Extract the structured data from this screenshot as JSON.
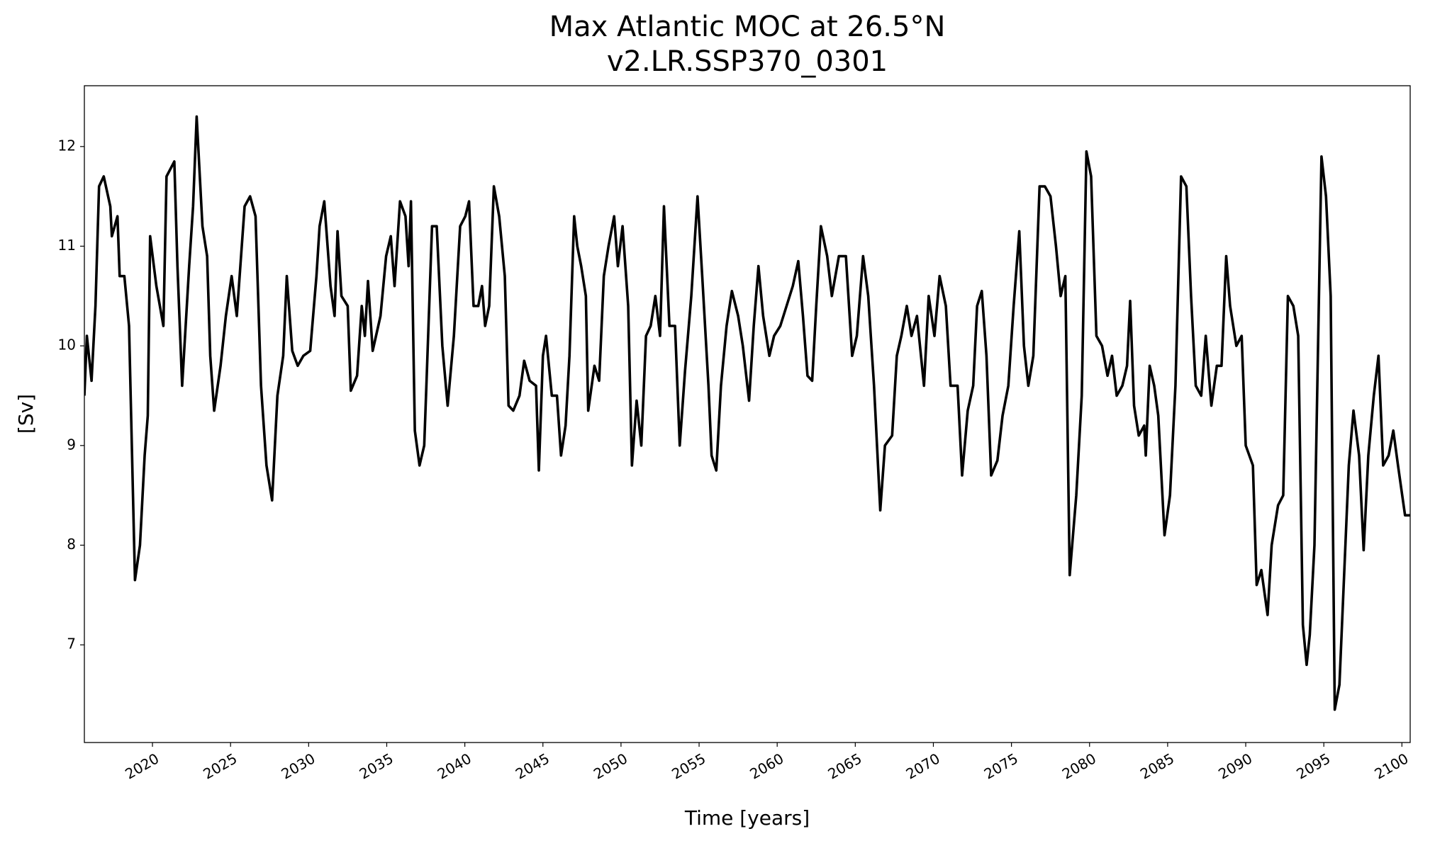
{
  "chart_data": {
    "type": "line",
    "title": "Max Atlantic MOC at 26.5°N",
    "subtitle": "v2.LR.SSP370_0301",
    "x_label": "Time [years]",
    "y_label": "[Sv]",
    "color": "#000000",
    "xlim": [
      2015.64,
      2100.53
    ],
    "ylim": [
      6.02,
      12.61
    ],
    "xticks": [
      2020,
      2025,
      2030,
      2035,
      2040,
      2045,
      2050,
      2055,
      2060,
      2065,
      2070,
      2075,
      2080,
      2085,
      2090,
      2095,
      2100
    ],
    "yticks": [
      7,
      8,
      9,
      10,
      11,
      12
    ],
    "x": [
      2015.64,
      2015.8,
      2016.1,
      2016.35,
      2016.58,
      2016.88,
      2017.3,
      2017.4,
      2017.76,
      2017.9,
      2018.2,
      2018.5,
      2018.88,
      2019.2,
      2019.5,
      2019.7,
      2019.85,
      2020.25,
      2020.7,
      2020.9,
      2021.4,
      2021.6,
      2021.9,
      2022.35,
      2022.6,
      2022.83,
      2023.2,
      2023.5,
      2023.7,
      2023.95,
      2024.36,
      2024.7,
      2025.07,
      2025.4,
      2025.9,
      2026.25,
      2026.6,
      2026.95,
      2027.3,
      2027.66,
      2028.0,
      2028.37,
      2028.6,
      2028.95,
      2029.3,
      2029.66,
      2030.1,
      2030.5,
      2030.7,
      2031.0,
      2031.4,
      2031.66,
      2031.85,
      2032.1,
      2032.5,
      2032.7,
      2033.1,
      2033.4,
      2033.6,
      2033.8,
      2034.1,
      2034.6,
      2034.96,
      2035.26,
      2035.5,
      2035.85,
      2036.2,
      2036.4,
      2036.55,
      2036.8,
      2037.1,
      2037.4,
      2037.55,
      2037.9,
      2038.2,
      2038.56,
      2038.9,
      2039.3,
      2039.7,
      2040.03,
      2040.27,
      2040.56,
      2040.86,
      2041.1,
      2041.3,
      2041.56,
      2041.86,
      2042.2,
      2042.56,
      2042.8,
      2043.1,
      2043.5,
      2043.8,
      2044.15,
      2044.56,
      2044.74,
      2045.0,
      2045.2,
      2045.57,
      2045.9,
      2046.16,
      2046.45,
      2046.7,
      2047.0,
      2047.2,
      2047.45,
      2047.75,
      2047.9,
      2048.3,
      2048.6,
      2048.9,
      2049.2,
      2049.56,
      2049.8,
      2050.1,
      2050.46,
      2050.7,
      2051.0,
      2051.3,
      2051.6,
      2051.9,
      2052.2,
      2052.5,
      2052.75,
      2053.1,
      2053.46,
      2053.76,
      2054.1,
      2054.5,
      2054.9,
      2055.2,
      2055.6,
      2055.8,
      2056.1,
      2056.4,
      2056.76,
      2057.1,
      2057.5,
      2057.8,
      2058.2,
      2058.5,
      2058.8,
      2059.1,
      2059.5,
      2059.8,
      2060.2,
      2060.6,
      2061.0,
      2061.35,
      2061.65,
      2061.94,
      2062.24,
      2062.5,
      2062.8,
      2063.2,
      2063.5,
      2063.95,
      2064.4,
      2064.8,
      2065.1,
      2065.5,
      2065.83,
      2066.2,
      2066.6,
      2066.9,
      2067.36,
      2067.66,
      2067.95,
      2068.3,
      2068.6,
      2068.95,
      2069.4,
      2069.7,
      2070.07,
      2070.4,
      2070.8,
      2071.1,
      2071.55,
      2071.84,
      2072.2,
      2072.55,
      2072.8,
      2073.1,
      2073.4,
      2073.7,
      2074.1,
      2074.43,
      2074.8,
      2075.14,
      2075.5,
      2075.8,
      2076.08,
      2076.4,
      2076.8,
      2077.14,
      2077.5,
      2077.85,
      2078.15,
      2078.45,
      2078.73,
      2079.15,
      2079.5,
      2079.8,
      2080.1,
      2080.44,
      2080.8,
      2081.15,
      2081.44,
      2081.74,
      2082.1,
      2082.4,
      2082.6,
      2082.85,
      2083.15,
      2083.5,
      2083.6,
      2083.85,
      2084.14,
      2084.4,
      2084.8,
      2085.15,
      2085.5,
      2085.86,
      2086.2,
      2086.5,
      2086.8,
      2087.15,
      2087.44,
      2087.8,
      2088.15,
      2088.45,
      2088.75,
      2089.0,
      2089.4,
      2089.74,
      2090.0,
      2090.46,
      2090.7,
      2091.0,
      2091.4,
      2091.66,
      2092.07,
      2092.4,
      2092.7,
      2093.05,
      2093.36,
      2093.66,
      2093.9,
      2094.1,
      2094.4,
      2094.85,
      2095.14,
      2095.44,
      2095.7,
      2096.0,
      2096.3,
      2096.6,
      2096.9,
      2097.26,
      2097.55,
      2097.85,
      2098.2,
      2098.5,
      2098.8,
      2099.15,
      2099.45,
      2099.75,
      2100.2,
      2100.53
    ],
    "values": [
      9.5,
      10.1,
      9.65,
      10.4,
      11.6,
      11.7,
      11.4,
      11.1,
      11.3,
      10.7,
      10.7,
      10.2,
      7.65,
      8.0,
      8.9,
      9.3,
      11.1,
      10.6,
      10.2,
      11.7,
      11.85,
      10.8,
      9.6,
      10.8,
      11.4,
      12.3,
      11.2,
      10.9,
      9.9,
      9.35,
      9.8,
      10.3,
      10.7,
      10.3,
      11.4,
      11.5,
      11.3,
      9.6,
      8.8,
      8.45,
      9.5,
      9.9,
      10.7,
      9.95,
      9.8,
      9.9,
      9.95,
      10.7,
      11.2,
      11.45,
      10.6,
      10.3,
      11.15,
      10.5,
      10.4,
      9.55,
      9.7,
      10.4,
      10.1,
      10.65,
      9.95,
      10.3,
      10.9,
      11.1,
      10.6,
      11.45,
      11.3,
      10.8,
      11.45,
      9.15,
      8.8,
      9.0,
      9.65,
      11.2,
      11.2,
      10.0,
      9.4,
      10.1,
      11.2,
      11.3,
      11.45,
      10.4,
      10.4,
      10.6,
      10.2,
      10.4,
      11.6,
      11.3,
      10.7,
      9.4,
      9.35,
      9.5,
      9.85,
      9.65,
      9.6,
      8.75,
      9.9,
      10.1,
      9.5,
      9.5,
      8.9,
      9.2,
      9.9,
      11.3,
      11.0,
      10.8,
      10.5,
      9.35,
      9.8,
      9.65,
      10.7,
      11.0,
      11.3,
      10.8,
      11.2,
      10.4,
      8.8,
      9.45,
      9.0,
      10.1,
      10.2,
      10.5,
      10.1,
      11.4,
      10.2,
      10.2,
      9.0,
      9.75,
      10.5,
      11.5,
      10.7,
      9.6,
      8.9,
      8.75,
      9.6,
      10.2,
      10.55,
      10.3,
      10.0,
      9.45,
      10.2,
      10.8,
      10.3,
      9.9,
      10.1,
      10.2,
      10.4,
      10.6,
      10.85,
      10.3,
      9.7,
      9.65,
      10.4,
      11.2,
      10.9,
      10.5,
      10.9,
      10.9,
      9.9,
      10.1,
      10.9,
      10.5,
      9.6,
      8.35,
      9.0,
      9.1,
      9.9,
      10.1,
      10.4,
      10.1,
      10.3,
      9.6,
      10.5,
      10.1,
      10.7,
      10.4,
      9.6,
      9.6,
      8.7,
      9.35,
      9.6,
      10.4,
      10.55,
      9.9,
      8.7,
      8.85,
      9.3,
      9.6,
      10.4,
      11.15,
      10.0,
      9.6,
      9.9,
      11.6,
      11.6,
      11.5,
      11.0,
      10.5,
      10.7,
      7.7,
      8.5,
      9.5,
      11.95,
      11.7,
      10.1,
      10.0,
      9.7,
      9.9,
      9.5,
      9.6,
      9.8,
      10.45,
      9.4,
      9.1,
      9.2,
      8.9,
      9.8,
      9.6,
      9.3,
      8.1,
      8.5,
      9.6,
      11.7,
      11.6,
      10.5,
      9.6,
      9.5,
      10.1,
      9.4,
      9.8,
      9.8,
      10.9,
      10.4,
      10.0,
      10.1,
      9.0,
      8.8,
      7.6,
      7.75,
      7.3,
      8.0,
      8.4,
      8.5,
      10.5,
      10.4,
      10.1,
      7.2,
      6.8,
      7.1,
      8.0,
      11.9,
      11.5,
      10.5,
      6.35,
      6.6,
      7.7,
      8.8,
      9.35,
      8.9,
      7.95,
      8.9,
      9.5,
      9.9,
      8.8,
      8.9,
      9.15,
      8.8,
      8.3,
      8.3
    ]
  }
}
